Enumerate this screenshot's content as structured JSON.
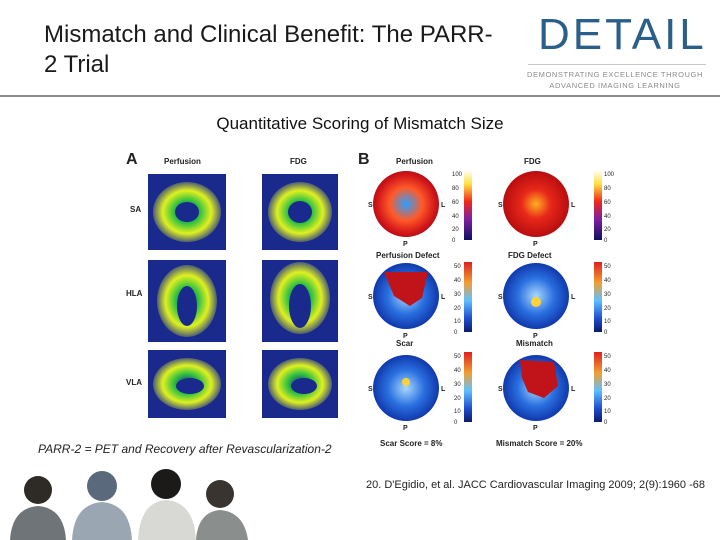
{
  "slide": {
    "title": "Mismatch and Clinical Benefit: The PARR-2 Trial",
    "subtitle": "Quantitative Scoring of Mismatch Size",
    "footnote": "PARR-2 = PET and Recovery after Revascularization-2",
    "reference": "20. D'Egidio, et al. JACC Cardiovascular Imaging 2009; 2(9):1960 -68"
  },
  "logo": {
    "word": "DETAIL",
    "tagline_1": "DEMONSTRATING EXCELLENCE THROUGH",
    "tagline_2": "ADVANCED IMAGING LEARNING",
    "color": "#2a5f8a"
  },
  "figure": {
    "panel_a": {
      "letter": "A",
      "col_headers": [
        "Perfusion",
        "FDG"
      ],
      "row_labels": [
        "SA",
        "HLA",
        "VLA"
      ]
    },
    "panel_b": {
      "letter": "B",
      "rows": [
        {
          "titles": [
            "Perfusion",
            "FDG"
          ],
          "scales": [
            [
              "100",
              "80",
              "60",
              "40",
              "20",
              "0"
            ],
            [
              "100",
              "80",
              "60",
              "40",
              "20",
              "0"
            ]
          ]
        },
        {
          "titles": [
            "Perfusion Defect",
            "FDG Defect"
          ],
          "scales": [
            [
              "50",
              "40",
              "30",
              "20",
              "10",
              "0"
            ],
            [
              "50",
              "40",
              "30",
              "20",
              "10",
              "0"
            ]
          ]
        },
        {
          "titles": [
            "Scar",
            "Mismatch"
          ],
          "scales": [
            [
              "50",
              "40",
              "30",
              "20",
              "10",
              "0"
            ],
            [
              "50",
              "40",
              "30",
              "20",
              "10",
              "0"
            ]
          ]
        }
      ],
      "orientation": {
        "left": "S",
        "right": "L",
        "bottom": "P"
      },
      "scores": [
        "Scar Score = 8%",
        "Mismatch Score = 20%"
      ]
    }
  }
}
